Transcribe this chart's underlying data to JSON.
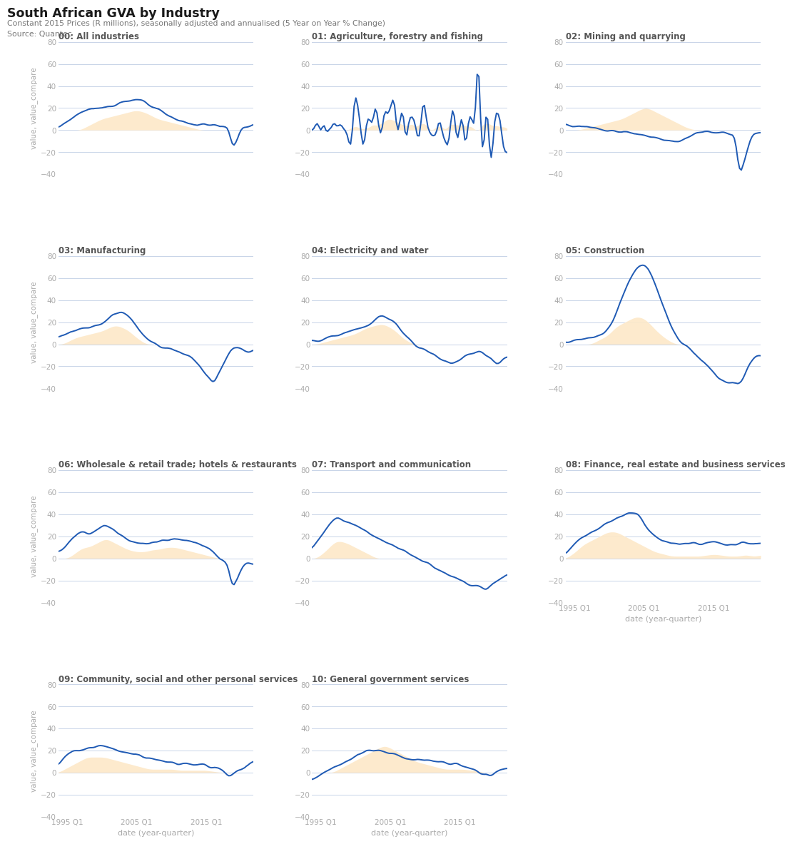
{
  "title": "South African GVA by Industry",
  "subtitle": "Constant 2015 Prices (R millions), seasonally adjusted and annualised (5 Year on Year % Change)",
  "source": "Source: Quantec",
  "title_color": "#1a1a1a",
  "subtitle_color": "#777777",
  "line_color": "#1f5ab4",
  "fill_color": "#fde8c8",
  "fill_alpha": 0.9,
  "background_color": "#ffffff",
  "grid_color": "#c8d4e8",
  "tick_color": "#aaaaaa",
  "subplot_title_color": "#555555",
  "subplot_titles": [
    "00: All industries",
    "01: Agriculture, forestry and fishing",
    "02: Mining and quarrying",
    "03: Manufacturing",
    "04: Electricity and water",
    "05: Construction",
    "06: Wholesale & retail trade; hotels & restaurants",
    "07: Transport and communication",
    "08: Finance, real estate and business services",
    "09: Community, social and other personal services",
    "10: General government services"
  ],
  "ylabel": "value, value_compare",
  "xlabel": "date (year-quarter)",
  "ylim": [
    -40,
    80
  ],
  "yticks": [
    -40,
    -20,
    0,
    20,
    40,
    60,
    80
  ],
  "x_tick_years": [
    1995,
    2005,
    2015
  ],
  "x_tick_labels": [
    "1995 Q1",
    "2005 Q1",
    "2015 Q1"
  ],
  "line_width": 1.4,
  "n_points": 112,
  "start_year": 1993.75
}
